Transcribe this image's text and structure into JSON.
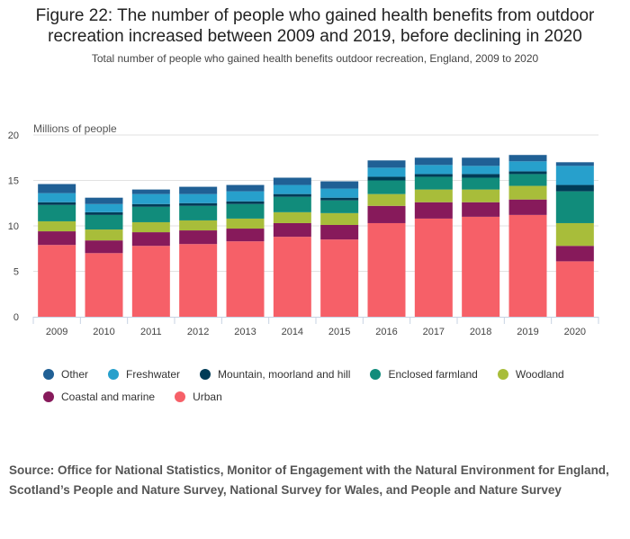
{
  "title": "Figure 22: The number of people who gained health benefits from outdoor recreation increased between 2009 and 2019, before declining in 2020",
  "subtitle": "Total number of people who gained health benefits outdoor recreation, England, 2009 to 2020",
  "source": "Source: Office for National Statistics, Monitor of Engagement with the Natural Environment for England, Scotland’s People and Nature Survey, National Survey for Wales, and People and Nature Survey",
  "chart_data": {
    "type": "bar",
    "stacked": true,
    "ylabel": "Millions of people",
    "ylim": [
      0,
      20
    ],
    "yticks": [
      "0",
      "5",
      "10",
      "15",
      "20"
    ],
    "grid": true,
    "legend_position": "bottom",
    "categories": [
      "2009",
      "2010",
      "2011",
      "2012",
      "2013",
      "2014",
      "2015",
      "2016",
      "2017",
      "2018",
      "2019",
      "2020"
    ],
    "series": [
      {
        "name": "Urban",
        "color": "#f66068",
        "values": [
          7.9,
          7.0,
          7.8,
          8.0,
          8.3,
          8.8,
          8.5,
          10.3,
          10.8,
          11.0,
          11.2,
          6.1
        ]
      },
      {
        "name": "Coastal and marine",
        "color": "#871a5b",
        "values": [
          1.5,
          1.4,
          1.5,
          1.5,
          1.4,
          1.5,
          1.6,
          1.9,
          1.8,
          1.6,
          1.7,
          1.7
        ]
      },
      {
        "name": "Woodland",
        "color": "#a8bd3a",
        "values": [
          1.1,
          1.2,
          1.1,
          1.1,
          1.1,
          1.2,
          1.3,
          1.3,
          1.4,
          1.4,
          1.5,
          2.5
        ]
      },
      {
        "name": "Enclosed farmland",
        "color": "#118c7b",
        "values": [
          1.8,
          1.6,
          1.7,
          1.6,
          1.6,
          1.7,
          1.4,
          1.5,
          1.4,
          1.3,
          1.3,
          3.5
        ]
      },
      {
        "name": "Mountain, moorland and hill",
        "color": "#003c57",
        "values": [
          0.3,
          0.3,
          0.3,
          0.3,
          0.3,
          0.3,
          0.3,
          0.4,
          0.3,
          0.4,
          0.3,
          0.7
        ]
      },
      {
        "name": "Freshwater",
        "color": "#27a0cc",
        "values": [
          1.0,
          0.9,
          1.1,
          1.0,
          1.1,
          1.0,
          1.0,
          1.0,
          1.0,
          0.9,
          1.1,
          2.1
        ]
      },
      {
        "name": "Other",
        "color": "#206095",
        "values": [
          1.0,
          0.7,
          0.5,
          0.8,
          0.7,
          0.8,
          0.8,
          0.8,
          0.8,
          0.9,
          0.7,
          0.4
        ]
      }
    ],
    "legend_order": [
      "Other",
      "Freshwater",
      "Mountain, moorland and hill",
      "Enclosed farmland",
      "Woodland",
      "Coastal and marine",
      "Urban"
    ]
  }
}
